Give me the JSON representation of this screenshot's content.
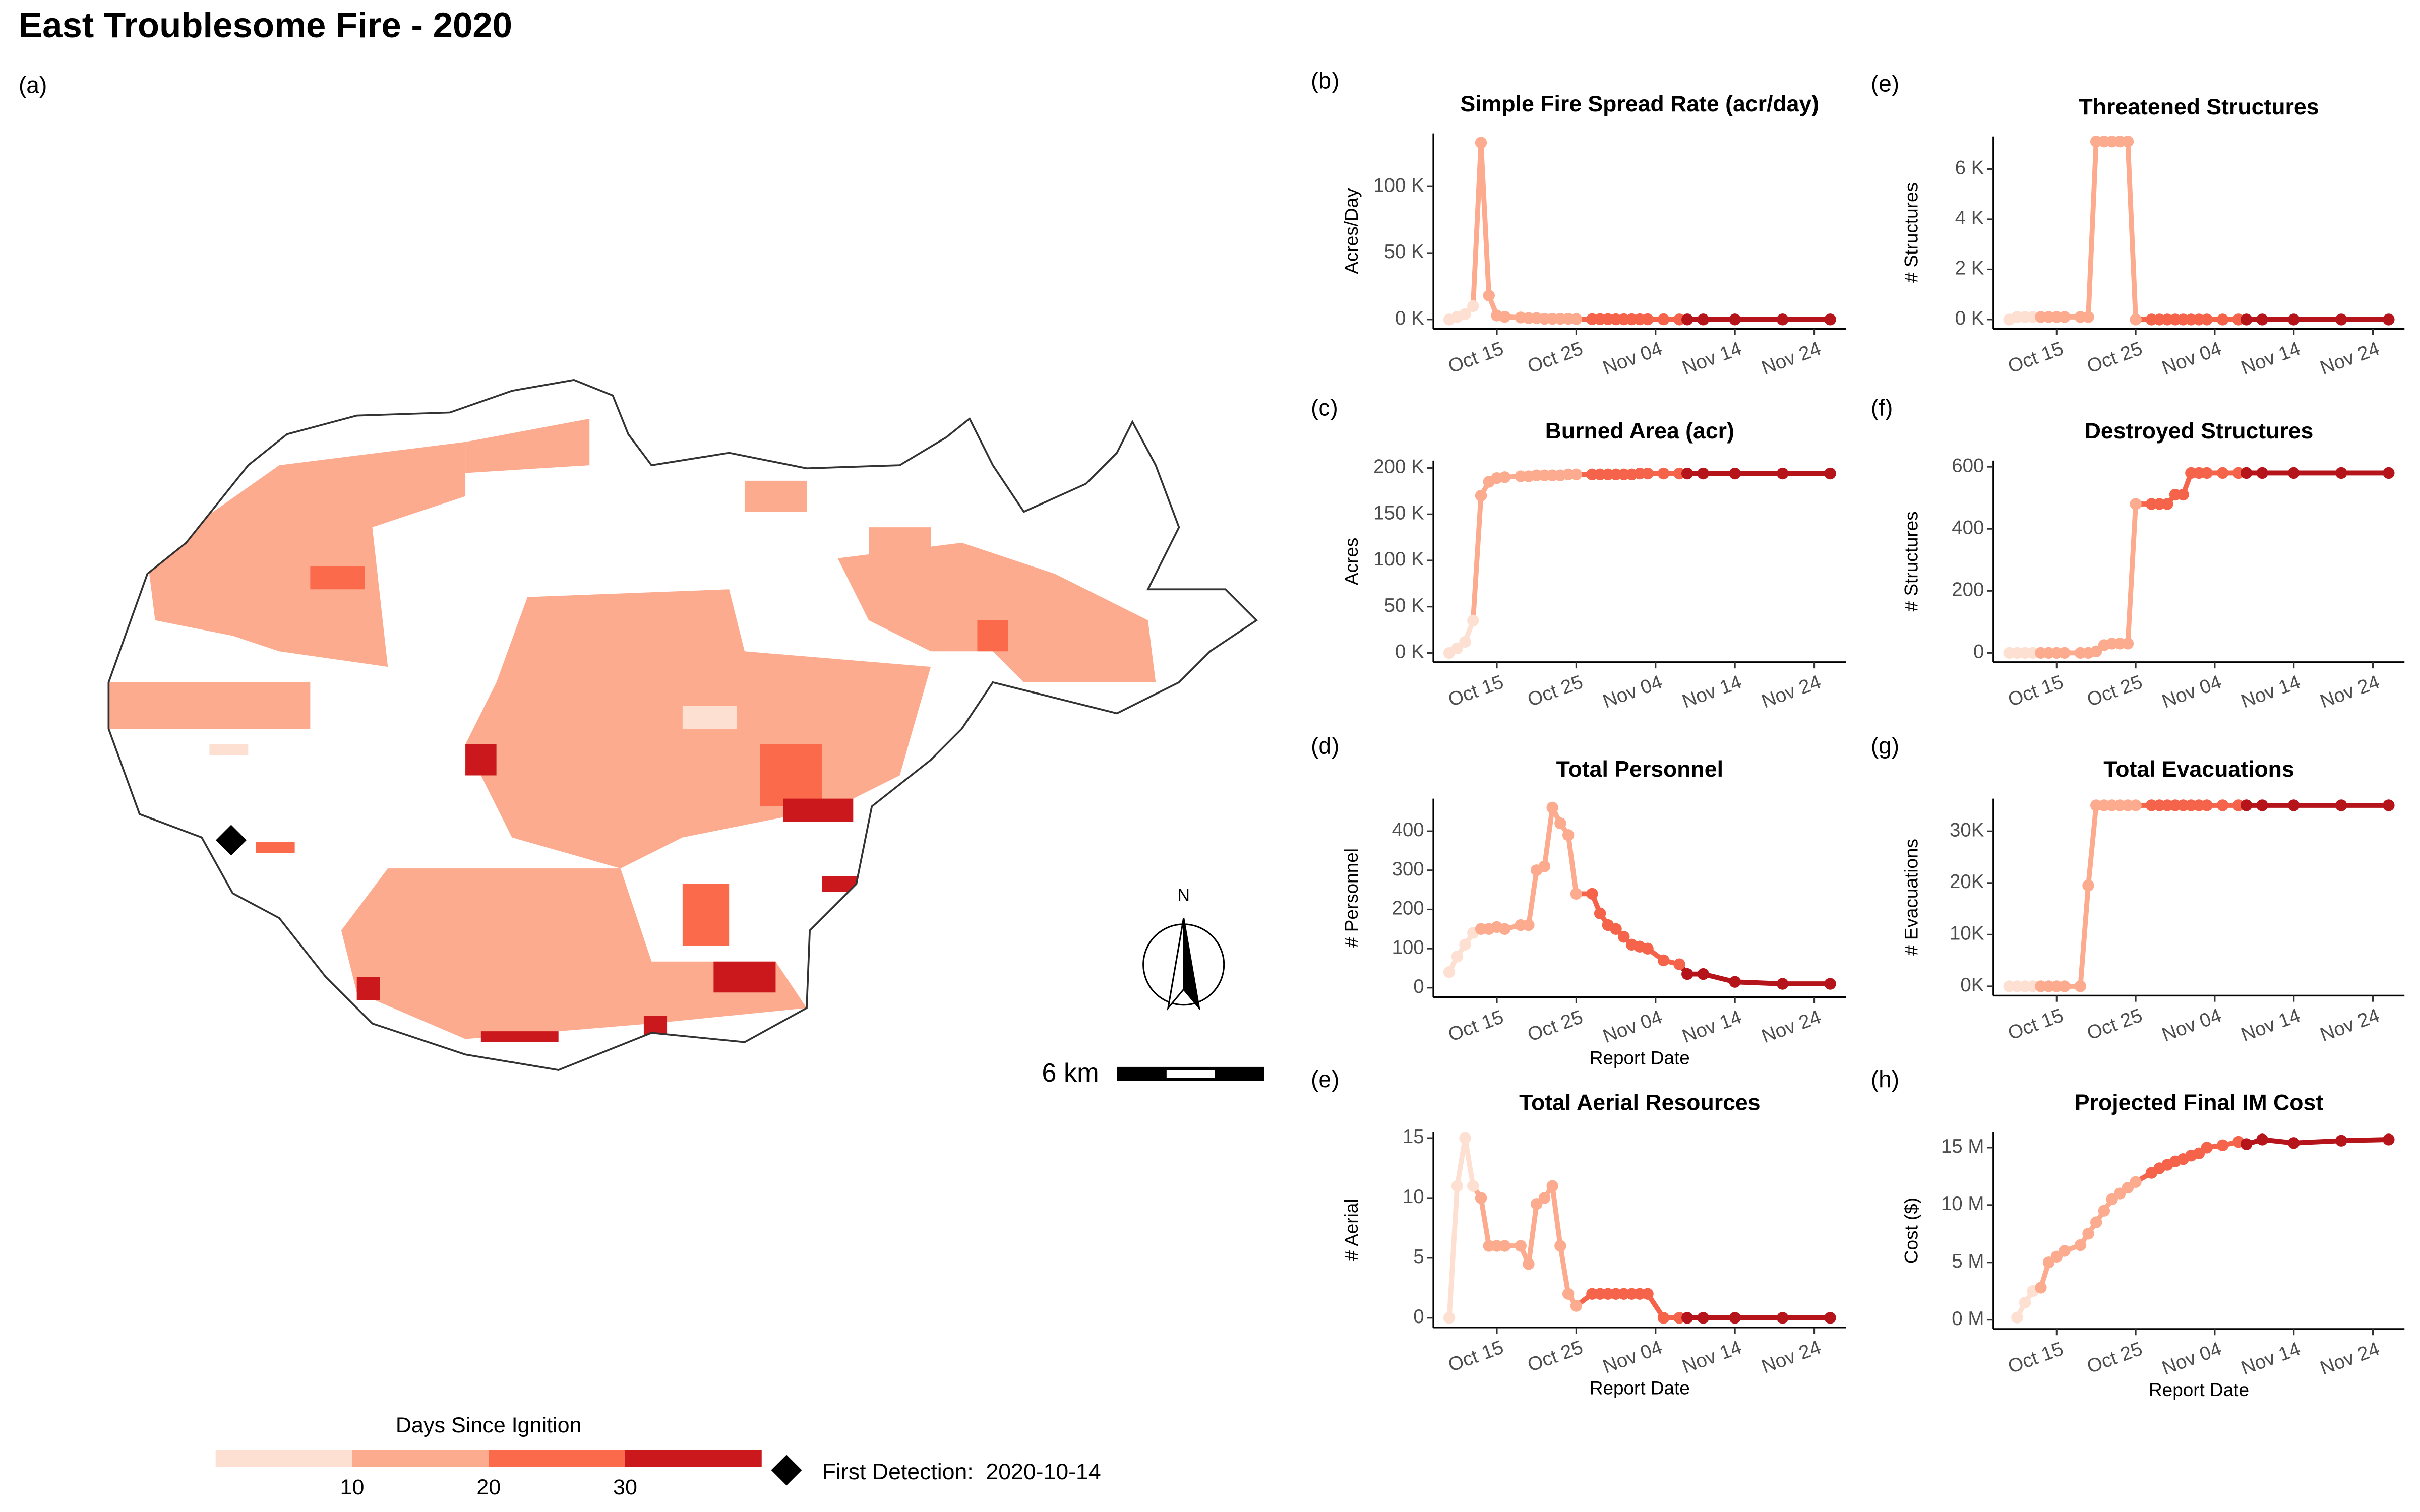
{
  "title": "East Troublesome Fire - 2020",
  "map": {
    "panel_label": "(a)",
    "legend_title": "Days Since Ignition",
    "legend_ticks": [
      10,
      20,
      30
    ],
    "legend_colors": [
      "#fee0d2",
      "#fcab8e",
      "#fb6a4a",
      "#cb181d"
    ],
    "first_detection_label": "First Detection:",
    "first_detection": "2020-10-14",
    "north_label": "N",
    "scale_label": "6 km"
  },
  "chart_data": [
    {
      "type": "line",
      "panel_label": "(b)",
      "title": "Simple Fire Spread Rate (acr/day)",
      "ylabel": "Acres/Day",
      "x": [
        "Oct 09",
        "Oct 10",
        "Oct 11",
        "Oct 12",
        "Oct 13",
        "Oct 14",
        "Oct 15",
        "Oct 16",
        "Oct 18",
        "Oct 19",
        "Oct 20",
        "Oct 21",
        "Oct 22",
        "Oct 23",
        "Oct 24",
        "Oct 25",
        "Oct 27",
        "Oct 28",
        "Oct 29",
        "Oct 30",
        "Oct 31",
        "Nov 01",
        "Nov 02",
        "Nov 03",
        "Nov 05",
        "Nov 07",
        "Nov 08",
        "Nov 10",
        "Nov 14",
        "Nov 20",
        "Nov 26"
      ],
      "values": [
        0,
        2000,
        4000,
        10000,
        133000,
        18000,
        3000,
        2000,
        1500,
        1000,
        1000,
        500,
        500,
        500,
        500,
        300,
        200,
        200,
        200,
        100,
        100,
        100,
        100,
        100,
        100,
        0,
        0,
        0,
        0,
        0,
        0
      ],
      "colors": [
        "#fee0d2",
        "#fee0d2",
        "#fee0d2",
        "#fee0d2",
        "#fcab8e",
        "#fcab8e",
        "#fcab8e",
        "#fcab8e",
        "#fcab8e",
        "#fcab8e",
        "#fcab8e",
        "#fcab8e",
        "#fcab8e",
        "#fcab8e",
        "#fcab8e",
        "#fcab8e",
        "#f4634a",
        "#f4634a",
        "#f4634a",
        "#f4634a",
        "#f4634a",
        "#f4634a",
        "#f4634a",
        "#f4634a",
        "#f4634a",
        "#f4634a",
        "#b5141b",
        "#b5141b",
        "#b5141b",
        "#b5141b",
        "#b5141b"
      ],
      "xlim": [
        "Oct 07",
        "Nov 28"
      ],
      "xticks": [
        "Oct 15",
        "Oct 25",
        "Nov 04",
        "Nov 14",
        "Nov 24"
      ],
      "ylim": [
        -7000,
        140000
      ],
      "yticks": [
        {
          "value": 0,
          "label": "0 K"
        },
        {
          "value": 50000,
          "label": "50 K"
        },
        {
          "value": 100000,
          "label": "100 K"
        }
      ]
    },
    {
      "type": "line",
      "panel_label": "(c)",
      "title": "Burned Area (acr)",
      "ylabel": "Acres",
      "x": [
        "Oct 09",
        "Oct 10",
        "Oct 11",
        "Oct 12",
        "Oct 13",
        "Oct 14",
        "Oct 15",
        "Oct 16",
        "Oct 18",
        "Oct 19",
        "Oct 20",
        "Oct 21",
        "Oct 22",
        "Oct 23",
        "Oct 24",
        "Oct 25",
        "Oct 27",
        "Oct 28",
        "Oct 29",
        "Oct 30",
        "Oct 31",
        "Nov 01",
        "Nov 02",
        "Nov 03",
        "Nov 05",
        "Nov 07",
        "Nov 08",
        "Nov 10",
        "Nov 14",
        "Nov 20",
        "Nov 26"
      ],
      "values": [
        0,
        5000,
        12000,
        35000,
        170000,
        185000,
        189000,
        190000,
        191000,
        191000,
        192000,
        192000,
        192000,
        192000,
        193000,
        193000,
        193000,
        193000,
        193000,
        193000,
        193000,
        193000,
        194000,
        194000,
        194000,
        194000,
        194000,
        194000,
        194000,
        194000,
        194000
      ],
      "colors": [
        "#fee0d2",
        "#fee0d2",
        "#fee0d2",
        "#fee0d2",
        "#fcab8e",
        "#fcab8e",
        "#fcab8e",
        "#fcab8e",
        "#fcab8e",
        "#fcab8e",
        "#fcab8e",
        "#fcab8e",
        "#fcab8e",
        "#fcab8e",
        "#fcab8e",
        "#fcab8e",
        "#f4634a",
        "#f4634a",
        "#f4634a",
        "#f4634a",
        "#f4634a",
        "#f4634a",
        "#f4634a",
        "#f4634a",
        "#f4634a",
        "#f4634a",
        "#b5141b",
        "#b5141b",
        "#b5141b",
        "#b5141b",
        "#b5141b"
      ],
      "xlim": [
        "Oct 07",
        "Nov 28"
      ],
      "xticks": [
        "Oct 15",
        "Oct 25",
        "Nov 04",
        "Nov 14",
        "Nov 24"
      ],
      "ylim": [
        -10000,
        208000
      ],
      "yticks": [
        {
          "value": 0,
          "label": "0 K"
        },
        {
          "value": 50000,
          "label": "50 K"
        },
        {
          "value": 100000,
          "label": "100 K"
        },
        {
          "value": 150000,
          "label": "150 K"
        },
        {
          "value": 200000,
          "label": "200 K"
        }
      ]
    },
    {
      "type": "line",
      "panel_label": "(d)",
      "title": "Total Personnel",
      "ylabel": "# Personnel",
      "xlabel": "Report Date",
      "x": [
        "Oct 09",
        "Oct 10",
        "Oct 11",
        "Oct 12",
        "Oct 13",
        "Oct 14",
        "Oct 15",
        "Oct 16",
        "Oct 18",
        "Oct 19",
        "Oct 20",
        "Oct 21",
        "Oct 22",
        "Oct 23",
        "Oct 24",
        "Oct 25",
        "Oct 27",
        "Oct 28",
        "Oct 29",
        "Oct 30",
        "Oct 31",
        "Nov 01",
        "Nov 02",
        "Nov 03",
        "Nov 05",
        "Nov 07",
        "Nov 08",
        "Nov 10",
        "Nov 14",
        "Nov 20",
        "Nov 26"
      ],
      "values": [
        40,
        80,
        110,
        140,
        150,
        150,
        155,
        150,
        160,
        160,
        300,
        310,
        460,
        420,
        390,
        240,
        240,
        190,
        160,
        150,
        130,
        110,
        105,
        100,
        70,
        60,
        35,
        35,
        15,
        10,
        10
      ],
      "colors": [
        "#fee0d2",
        "#fee0d2",
        "#fee0d2",
        "#fee0d2",
        "#fcab8e",
        "#fcab8e",
        "#fcab8e",
        "#fcab8e",
        "#fcab8e",
        "#fcab8e",
        "#fcab8e",
        "#fcab8e",
        "#fcab8e",
        "#fcab8e",
        "#fcab8e",
        "#fcab8e",
        "#f4634a",
        "#f4634a",
        "#f4634a",
        "#f4634a",
        "#f4634a",
        "#f4634a",
        "#f4634a",
        "#f4634a",
        "#f4634a",
        "#f4634a",
        "#b5141b",
        "#b5141b",
        "#b5141b",
        "#b5141b",
        "#b5141b"
      ],
      "xlim": [
        "Oct 07",
        "Nov 28"
      ],
      "xticks": [
        "Oct 15",
        "Oct 25",
        "Nov 04",
        "Nov 14",
        "Nov 24"
      ],
      "ylim": [
        -24,
        483
      ],
      "yticks": [
        0,
        100,
        200,
        300,
        400
      ]
    },
    {
      "type": "line",
      "panel_label": "(e)",
      "title": "Total Aerial Resources",
      "ylabel": "# Aerial",
      "xlabel": "Report Date",
      "x": [
        "Oct 09",
        "Oct 10",
        "Oct 11",
        "Oct 12",
        "Oct 13",
        "Oct 14",
        "Oct 15",
        "Oct 16",
        "Oct 18",
        "Oct 19",
        "Oct 20",
        "Oct 21",
        "Oct 22",
        "Oct 23",
        "Oct 24",
        "Oct 25",
        "Oct 27",
        "Oct 28",
        "Oct 29",
        "Oct 30",
        "Oct 31",
        "Nov 01",
        "Nov 02",
        "Nov 03",
        "Nov 05",
        "Nov 07",
        "Nov 08",
        "Nov 10",
        "Nov 14",
        "Nov 20",
        "Nov 26"
      ],
      "values": [
        0,
        11,
        15,
        11,
        10,
        6,
        6,
        6,
        6,
        4.5,
        9.5,
        10,
        11,
        6,
        2,
        1,
        2,
        2,
        2,
        2,
        2,
        2,
        2,
        2,
        0,
        0,
        0,
        0,
        0,
        0,
        0
      ],
      "colors": [
        "#fee0d2",
        "#fee0d2",
        "#fee0d2",
        "#fee0d2",
        "#fcab8e",
        "#fcab8e",
        "#fcab8e",
        "#fcab8e",
        "#fcab8e",
        "#fcab8e",
        "#fcab8e",
        "#fcab8e",
        "#fcab8e",
        "#fcab8e",
        "#fcab8e",
        "#fcab8e",
        "#f4634a",
        "#f4634a",
        "#f4634a",
        "#f4634a",
        "#f4634a",
        "#f4634a",
        "#f4634a",
        "#f4634a",
        "#f4634a",
        "#f4634a",
        "#b5141b",
        "#b5141b",
        "#b5141b",
        "#b5141b",
        "#b5141b"
      ],
      "xlim": [
        "Oct 07",
        "Nov 28"
      ],
      "xticks": [
        "Oct 15",
        "Oct 25",
        "Nov 04",
        "Nov 14",
        "Nov 24"
      ],
      "ylim": [
        -0.8,
        15.5
      ],
      "yticks": [
        0,
        5,
        10,
        15
      ]
    },
    {
      "type": "line",
      "panel_label": "(e)",
      "title": "Threatened Structures",
      "ylabel": "# Structures",
      "x": [
        "Oct 09",
        "Oct 10",
        "Oct 11",
        "Oct 12",
        "Oct 13",
        "Oct 14",
        "Oct 15",
        "Oct 16",
        "Oct 18",
        "Oct 19",
        "Oct 20",
        "Oct 21",
        "Oct 22",
        "Oct 23",
        "Oct 24",
        "Oct 25",
        "Oct 27",
        "Oct 28",
        "Oct 29",
        "Oct 30",
        "Oct 31",
        "Nov 01",
        "Nov 02",
        "Nov 03",
        "Nov 05",
        "Nov 07",
        "Nov 08",
        "Nov 10",
        "Nov 14",
        "Nov 20",
        "Nov 26"
      ],
      "values": [
        0,
        100,
        100,
        100,
        100,
        100,
        100,
        100,
        100,
        100,
        7100,
        7100,
        7100,
        7100,
        7100,
        0,
        0,
        0,
        0,
        0,
        0,
        0,
        0,
        0,
        0,
        0,
        0,
        0,
        0,
        0,
        0
      ],
      "colors": [
        "#fee0d2",
        "#fee0d2",
        "#fee0d2",
        "#fee0d2",
        "#fcab8e",
        "#fcab8e",
        "#fcab8e",
        "#fcab8e",
        "#fcab8e",
        "#fcab8e",
        "#fcab8e",
        "#fcab8e",
        "#fcab8e",
        "#fcab8e",
        "#fcab8e",
        "#fcab8e",
        "#f4634a",
        "#f4634a",
        "#f4634a",
        "#f4634a",
        "#f4634a",
        "#f4634a",
        "#f4634a",
        "#f4634a",
        "#f4634a",
        "#f4634a",
        "#b5141b",
        "#b5141b",
        "#b5141b",
        "#b5141b",
        "#b5141b"
      ],
      "xlim": [
        "Oct 07",
        "Nov 28"
      ],
      "xticks": [
        "Oct 15",
        "Oct 25",
        "Nov 04",
        "Nov 14",
        "Nov 24"
      ],
      "ylim": [
        -370,
        7300
      ],
      "yticks": [
        {
          "value": 0,
          "label": "0 K"
        },
        {
          "value": 2000,
          "label": "2 K"
        },
        {
          "value": 4000,
          "label": "4 K"
        },
        {
          "value": 6000,
          "label": "6 K"
        }
      ]
    },
    {
      "type": "line",
      "panel_label": "(f)",
      "title": "Destroyed Structures",
      "ylabel": "# Structures",
      "x": [
        "Oct 09",
        "Oct 10",
        "Oct 11",
        "Oct 12",
        "Oct 13",
        "Oct 14",
        "Oct 15",
        "Oct 16",
        "Oct 18",
        "Oct 19",
        "Oct 20",
        "Oct 21",
        "Oct 22",
        "Oct 23",
        "Oct 24",
        "Oct 25",
        "Oct 27",
        "Oct 28",
        "Oct 29",
        "Oct 30",
        "Oct 31",
        "Nov 01",
        "Nov 02",
        "Nov 03",
        "Nov 05",
        "Nov 07",
        "Nov 08",
        "Nov 10",
        "Nov 14",
        "Nov 20",
        "Nov 26"
      ],
      "values": [
        0,
        0,
        0,
        0,
        0,
        0,
        0,
        0,
        0,
        0,
        5,
        25,
        30,
        30,
        30,
        480,
        480,
        480,
        480,
        510,
        510,
        580,
        580,
        580,
        580,
        580,
        580,
        580,
        580,
        580,
        580
      ],
      "colors": [
        "#fee0d2",
        "#fee0d2",
        "#fee0d2",
        "#fee0d2",
        "#fcab8e",
        "#fcab8e",
        "#fcab8e",
        "#fcab8e",
        "#fcab8e",
        "#fcab8e",
        "#fcab8e",
        "#fcab8e",
        "#fcab8e",
        "#fcab8e",
        "#fcab8e",
        "#fcab8e",
        "#f4634a",
        "#f4634a",
        "#f4634a",
        "#f4634a",
        "#f4634a",
        "#f4634a",
        "#f4634a",
        "#f4634a",
        "#f4634a",
        "#f4634a",
        "#b5141b",
        "#b5141b",
        "#b5141b",
        "#b5141b",
        "#b5141b"
      ],
      "xlim": [
        "Oct 07",
        "Nov 28"
      ],
      "xticks": [
        "Oct 15",
        "Oct 25",
        "Nov 04",
        "Nov 14",
        "Nov 24"
      ],
      "ylim": [
        -30,
        620
      ],
      "yticks": [
        0,
        200,
        400,
        600
      ]
    },
    {
      "type": "line",
      "panel_label": "(g)",
      "title": "Total Evacuations",
      "ylabel": "# Evacuations",
      "x": [
        "Oct 09",
        "Oct 10",
        "Oct 11",
        "Oct 12",
        "Oct 13",
        "Oct 14",
        "Oct 15",
        "Oct 16",
        "Oct 18",
        "Oct 19",
        "Oct 20",
        "Oct 21",
        "Oct 22",
        "Oct 23",
        "Oct 24",
        "Oct 25",
        "Oct 27",
        "Oct 28",
        "Oct 29",
        "Oct 30",
        "Oct 31",
        "Nov 01",
        "Nov 02",
        "Nov 03",
        "Nov 05",
        "Nov 07",
        "Nov 08",
        "Nov 10",
        "Nov 14",
        "Nov 20",
        "Nov 26"
      ],
      "values": [
        0,
        0,
        0,
        0,
        0,
        0,
        0,
        0,
        0,
        19500,
        35000,
        35000,
        35000,
        35000,
        35000,
        35000,
        35000,
        35000,
        35000,
        35000,
        35000,
        35000,
        35000,
        35000,
        35000,
        35000,
        35000,
        35000,
        35000,
        35000,
        35000
      ],
      "colors": [
        "#fee0d2",
        "#fee0d2",
        "#fee0d2",
        "#fee0d2",
        "#fcab8e",
        "#fcab8e",
        "#fcab8e",
        "#fcab8e",
        "#fcab8e",
        "#fcab8e",
        "#fcab8e",
        "#fcab8e",
        "#fcab8e",
        "#fcab8e",
        "#fcab8e",
        "#fcab8e",
        "#f4634a",
        "#f4634a",
        "#f4634a",
        "#f4634a",
        "#f4634a",
        "#f4634a",
        "#f4634a",
        "#f4634a",
        "#f4634a",
        "#f4634a",
        "#b5141b",
        "#b5141b",
        "#b5141b",
        "#b5141b",
        "#b5141b"
      ],
      "xlim": [
        "Oct 07",
        "Nov 28"
      ],
      "xticks": [
        "Oct 15",
        "Oct 25",
        "Nov 04",
        "Nov 14",
        "Nov 24"
      ],
      "ylim": [
        -1800,
        36300
      ],
      "yticks": [
        {
          "value": 0,
          "label": "0K"
        },
        {
          "value": 10000,
          "label": "10K"
        },
        {
          "value": 20000,
          "label": "20K"
        },
        {
          "value": 30000,
          "label": "30K"
        }
      ]
    },
    {
      "type": "line",
      "panel_label": "(h)",
      "title": "Projected Final IM Cost",
      "ylabel": "Cost ($)",
      "xlabel": "Report Date",
      "x": [
        "Oct 09",
        "Oct 10",
        "Oct 11",
        "Oct 12",
        "Oct 13",
        "Oct 14",
        "Oct 15",
        "Oct 16",
        "Oct 18",
        "Oct 19",
        "Oct 20",
        "Oct 21",
        "Oct 22",
        "Oct 23",
        "Oct 24",
        "Oct 25",
        "Oct 27",
        "Oct 28",
        "Oct 29",
        "Oct 30",
        "Oct 31",
        "Nov 01",
        "Nov 02",
        "Nov 03",
        "Nov 05",
        "Nov 07",
        "Nov 08",
        "Nov 10",
        "Nov 14",
        "Nov 20",
        "Nov 26"
      ],
      "values": [
        null,
        200000,
        1500000,
        2500000,
        2800000,
        5000000,
        5500000,
        6000000,
        6500000,
        7500000,
        8500000,
        9500000,
        10500000,
        11000000,
        11500000,
        12000000,
        12800000,
        13200000,
        13500000,
        13800000,
        14000000,
        14300000,
        14500000,
        15000000,
        15200000,
        15500000,
        15300000,
        15700000,
        15400000,
        15600000,
        15700000
      ],
      "colors": [
        "#fee0d2",
        "#fee0d2",
        "#fee0d2",
        "#fee0d2",
        "#fcab8e",
        "#fcab8e",
        "#fcab8e",
        "#fcab8e",
        "#fcab8e",
        "#fcab8e",
        "#fcab8e",
        "#fcab8e",
        "#fcab8e",
        "#fcab8e",
        "#fcab8e",
        "#fcab8e",
        "#f4634a",
        "#f4634a",
        "#f4634a",
        "#f4634a",
        "#f4634a",
        "#f4634a",
        "#f4634a",
        "#f4634a",
        "#f4634a",
        "#f4634a",
        "#b5141b",
        "#b5141b",
        "#b5141b",
        "#b5141b",
        "#b5141b"
      ],
      "xlim": [
        "Oct 07",
        "Nov 28"
      ],
      "xticks": [
        "Oct 15",
        "Oct 25",
        "Nov 04",
        "Nov 14",
        "Nov 24"
      ],
      "ylim": [
        -800000,
        16350000
      ],
      "yticks": [
        {
          "value": 0,
          "label": "0 M"
        },
        {
          "value": 5000000,
          "label": "5 M"
        },
        {
          "value": 10000000,
          "label": "10 M"
        },
        {
          "value": 15000000,
          "label": "15 M"
        }
      ]
    }
  ]
}
